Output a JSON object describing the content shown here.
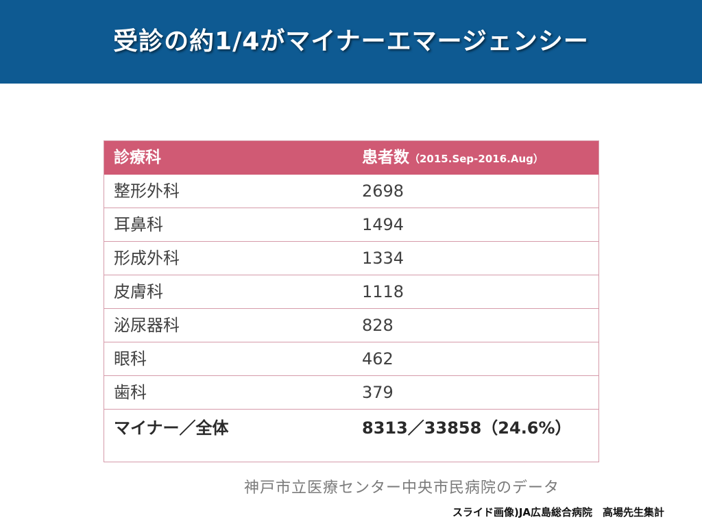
{
  "slide": {
    "title": "受診の約1/4がマイナーエマージェンシー"
  },
  "table": {
    "headers": {
      "department": "診療科",
      "patients": "患者数",
      "period": "（2015.Sep-2016.Aug）"
    },
    "rows": [
      {
        "department": "整形外科",
        "patients": "2698"
      },
      {
        "department": "耳鼻科",
        "patients": "1494"
      },
      {
        "department": "形成外科",
        "patients": "1334"
      },
      {
        "department": "皮膚科",
        "patients": "1118"
      },
      {
        "department": "泌尿器科",
        "patients": "828"
      },
      {
        "department": "眼科",
        "patients": "462"
      },
      {
        "department": "歯科",
        "patients": "379"
      }
    ],
    "total": {
      "label": "マイナー／全体",
      "value": "8313／33858（24.6%）"
    }
  },
  "source_note": "神戸市立医療センター中央市民病院のデータ",
  "credit": "スライド画像)JA広島総合病院　高場先生集計",
  "colors": {
    "title_bar": "#0e5a92",
    "table_header": "#d05a74",
    "table_border": "#d59aa9"
  }
}
